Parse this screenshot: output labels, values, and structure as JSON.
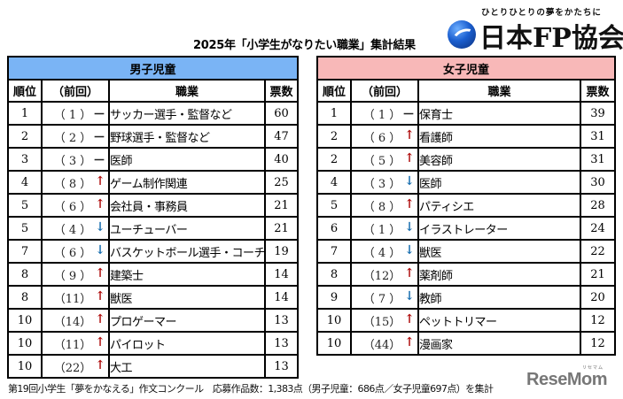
{
  "title": "2025年「小学生がなりたい職業」集計結果",
  "logo": {
    "tagline": "ひとりひとりの夢をかたちに",
    "name": "日本FP協会"
  },
  "columns": {
    "rank": "順位",
    "prev": "（前回）",
    "job": "職業",
    "votes": "票数"
  },
  "arrows": {
    "up": "↑",
    "down": "↓",
    "same": "－"
  },
  "colors": {
    "boys_header": "#7ab4f5",
    "girls_header": "#f8b8b8",
    "up_arrow": "#b01010",
    "down_arrow": "#1a6fb0"
  },
  "boys": {
    "label": "男子児童",
    "rows": [
      {
        "rank": "1",
        "prev": "（ 1 ）",
        "trend": "same",
        "arrow": "－",
        "job": "サッカー選手・監督など",
        "votes": "60"
      },
      {
        "rank": "2",
        "prev": "（ 2 ）",
        "trend": "same",
        "arrow": "－",
        "job": "野球選手・監督など",
        "votes": "47"
      },
      {
        "rank": "3",
        "prev": "（ 3 ）",
        "trend": "same",
        "arrow": "－",
        "job": "医師",
        "votes": "40"
      },
      {
        "rank": "4",
        "prev": "（ 8 ）",
        "trend": "up",
        "arrow": "↑",
        "job": "ゲーム制作関連",
        "votes": "25"
      },
      {
        "rank": "5",
        "prev": "（ 6 ）",
        "trend": "up",
        "arrow": "↑",
        "job": "会社員・事務員",
        "votes": "21"
      },
      {
        "rank": "5",
        "prev": "（ 4 ）",
        "trend": "down",
        "arrow": "↓",
        "job": "ユーチューバー",
        "votes": "21"
      },
      {
        "rank": "7",
        "prev": "（ 6 ）",
        "trend": "down",
        "arrow": "↓",
        "job": "バスケットボール選手・コーチ",
        "votes": "19"
      },
      {
        "rank": "8",
        "prev": "（ 9 ）",
        "trend": "up",
        "arrow": "↑",
        "job": "建築士",
        "votes": "14"
      },
      {
        "rank": "8",
        "prev": "（11）",
        "trend": "up",
        "arrow": "↑",
        "job": "獣医",
        "votes": "14"
      },
      {
        "rank": "10",
        "prev": "（14）",
        "trend": "up",
        "arrow": "↑",
        "job": "プロゲーマー",
        "votes": "13"
      },
      {
        "rank": "10",
        "prev": "（11）",
        "trend": "up",
        "arrow": "↑",
        "job": "パイロット",
        "votes": "13"
      },
      {
        "rank": "10",
        "prev": "（22）",
        "trend": "up",
        "arrow": "↑",
        "job": "大工",
        "votes": "13"
      }
    ]
  },
  "girls": {
    "label": "女子児童",
    "rows": [
      {
        "rank": "1",
        "prev": "（ 1 ）",
        "trend": "same",
        "arrow": "－",
        "job": "保育士",
        "votes": "39"
      },
      {
        "rank": "2",
        "prev": "（ 6 ）",
        "trend": "up",
        "arrow": "↑",
        "job": "看護師",
        "votes": "31"
      },
      {
        "rank": "2",
        "prev": "（ 5 ）",
        "trend": "up",
        "arrow": "↑",
        "job": "美容師",
        "votes": "31"
      },
      {
        "rank": "4",
        "prev": "（ 3 ）",
        "trend": "down",
        "arrow": "↓",
        "job": "医師",
        "votes": "30"
      },
      {
        "rank": "5",
        "prev": "（ 8 ）",
        "trend": "up",
        "arrow": "↑",
        "job": "パティシエ",
        "votes": "28"
      },
      {
        "rank": "6",
        "prev": "（ 1 ）",
        "trend": "down",
        "arrow": "↓",
        "job": "イラストレーター",
        "votes": "24"
      },
      {
        "rank": "7",
        "prev": "（ 4 ）",
        "trend": "down",
        "arrow": "↓",
        "job": "獣医",
        "votes": "22"
      },
      {
        "rank": "8",
        "prev": "（12）",
        "trend": "up",
        "arrow": "↑",
        "job": "薬剤師",
        "votes": "21"
      },
      {
        "rank": "9",
        "prev": "（ 7 ）",
        "trend": "down",
        "arrow": "↓",
        "job": "教師",
        "votes": "20"
      },
      {
        "rank": "10",
        "prev": "（15）",
        "trend": "up",
        "arrow": "↑",
        "job": "ペットトリマー",
        "votes": "12"
      },
      {
        "rank": "10",
        "prev": "（44）",
        "trend": "up",
        "arrow": "↑",
        "job": "漫画家",
        "votes": "12"
      }
    ]
  },
  "footer": "第19回小学生「夢をかなえる」作文コンクール　応募作品数：1,383点（男子児童：686点／女子児童697点）を集計",
  "watermark": {
    "text": "ReseMom",
    "sub": "リセマム"
  }
}
